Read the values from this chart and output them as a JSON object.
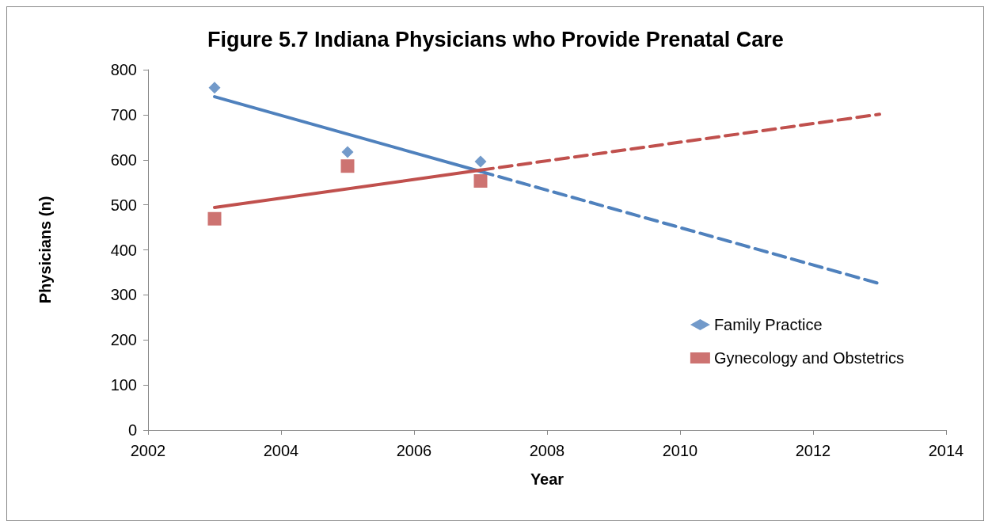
{
  "chart_data": {
    "type": "scatter",
    "title": "Figure 5.7 Indiana Physicians who Provide Prenatal Care",
    "xlabel": "Year",
    "ylabel": "Physicians (n)",
    "xlim": [
      2002,
      2014
    ],
    "xticks": [
      2002,
      2004,
      2006,
      2008,
      2010,
      2012,
      2014
    ],
    "ylim": [
      0,
      800
    ],
    "yticks": [
      0,
      100,
      200,
      300,
      400,
      500,
      600,
      700,
      800
    ],
    "grid": false,
    "legend": "right",
    "series": [
      {
        "name": "Family Practice",
        "color": "#4f81bd",
        "marker": "diamond",
        "x": [
          2003,
          2005,
          2007
        ],
        "values": [
          760,
          617,
          596
        ]
      },
      {
        "name": "Gynecology and Obstetrics",
        "color": "#c0504d",
        "marker": "square",
        "x": [
          2003,
          2005,
          2007
        ],
        "values": [
          469,
          586,
          553
        ]
      },
      {
        "type": "line",
        "color": "#4f81bd",
        "line_style": "solid",
        "marker": "none",
        "x": [
          2003,
          2007
        ],
        "values": [
          740,
          574
        ]
      },
      {
        "type": "line",
        "color": "#4f81bd",
        "line_style": "dashed",
        "marker": "none",
        "x": [
          2007,
          2013
        ],
        "values": [
          574,
          325
        ]
      },
      {
        "type": "line",
        "color": "#c0504d",
        "line_style": "solid",
        "marker": "none",
        "x": [
          2003,
          2007
        ],
        "values": [
          494,
          577
        ]
      },
      {
        "type": "line",
        "color": "#c0504d",
        "line_style": "dashed",
        "marker": "none",
        "x": [
          2007,
          2013
        ],
        "values": [
          577,
          701
        ]
      }
    ]
  }
}
